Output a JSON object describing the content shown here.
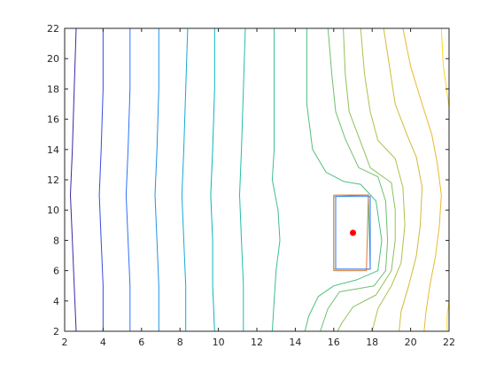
{
  "chart_data": {
    "type": "contour",
    "title": "",
    "xlabel": "",
    "ylabel": "",
    "xlim": [
      2,
      22
    ],
    "ylim": [
      2,
      22
    ],
    "grid": false,
    "xticks": [
      2,
      4,
      6,
      8,
      10,
      12,
      14,
      16,
      18,
      20,
      22
    ],
    "yticks": [
      2,
      4,
      6,
      8,
      10,
      12,
      14,
      16,
      18,
      20,
      22
    ],
    "xtick_labels": [
      "2",
      "4",
      "6",
      "8",
      "10",
      "12",
      "14",
      "16",
      "18",
      "20",
      "22"
    ],
    "ytick_labels": [
      "2",
      "4",
      "6",
      "8",
      "10",
      "12",
      "14",
      "16",
      "18",
      "20",
      "22"
    ],
    "contour_lines": [
      {
        "color": "#3e26a8",
        "points": [
          [
            2.6,
            22
          ],
          [
            2.5,
            18
          ],
          [
            2.4,
            14
          ],
          [
            2.3,
            11
          ],
          [
            2.4,
            8
          ],
          [
            2.5,
            5
          ],
          [
            2.6,
            2
          ]
        ]
      },
      {
        "color": "#3a4be3",
        "points": [
          [
            4.0,
            22
          ],
          [
            4.0,
            18
          ],
          [
            3.9,
            14
          ],
          [
            3.8,
            11
          ],
          [
            3.9,
            8
          ],
          [
            4.0,
            5
          ],
          [
            4.0,
            2
          ]
        ]
      },
      {
        "color": "#2c72f8",
        "points": [
          [
            5.4,
            22
          ],
          [
            5.4,
            18
          ],
          [
            5.3,
            14
          ],
          [
            5.2,
            11
          ],
          [
            5.3,
            8
          ],
          [
            5.4,
            5
          ],
          [
            5.4,
            2
          ]
        ]
      },
      {
        "color": "#1f93e6",
        "points": [
          [
            6.9,
            22
          ],
          [
            6.9,
            18
          ],
          [
            6.8,
            14
          ],
          [
            6.7,
            11
          ],
          [
            6.8,
            8
          ],
          [
            6.9,
            5
          ],
          [
            6.9,
            2
          ]
        ]
      },
      {
        "color": "#14a9d6",
        "points": [
          [
            8.4,
            22
          ],
          [
            8.3,
            18
          ],
          [
            8.2,
            14
          ],
          [
            8.1,
            11
          ],
          [
            8.2,
            8
          ],
          [
            8.3,
            5
          ],
          [
            8.3,
            2
          ]
        ]
      },
      {
        "color": "#08b6bd",
        "points": [
          [
            9.8,
            22
          ],
          [
            9.8,
            18
          ],
          [
            9.7,
            14
          ],
          [
            9.6,
            11
          ],
          [
            9.7,
            8
          ],
          [
            9.7,
            5
          ],
          [
            9.8,
            2
          ]
        ]
      },
      {
        "color": "#22bda8",
        "points": [
          [
            11.4,
            22
          ],
          [
            11.3,
            18
          ],
          [
            11.2,
            14
          ],
          [
            11.1,
            11
          ],
          [
            11.2,
            8
          ],
          [
            11.3,
            5
          ],
          [
            11.3,
            2
          ]
        ]
      },
      {
        "color": "#3cbf8f",
        "points": [
          [
            12.9,
            22
          ],
          [
            12.9,
            18
          ],
          [
            12.9,
            14
          ],
          [
            12.8,
            12
          ],
          [
            13.1,
            10
          ],
          [
            13.2,
            8
          ],
          [
            13.0,
            6
          ],
          [
            12.9,
            4
          ],
          [
            12.8,
            2
          ]
        ]
      },
      {
        "color": "#4ec07d",
        "points": [
          [
            14.6,
            22
          ],
          [
            14.6,
            17
          ],
          [
            14.9,
            14
          ],
          [
            15.6,
            12.5
          ],
          [
            16.5,
            11.9
          ],
          [
            17.4,
            11.7
          ],
          [
            18.2,
            10.6
          ],
          [
            18.5,
            8
          ],
          [
            18.3,
            6
          ],
          [
            17.2,
            5.4
          ],
          [
            16.0,
            5.0
          ],
          [
            15.2,
            4.3
          ],
          [
            14.7,
            3
          ],
          [
            14.5,
            2
          ]
        ]
      },
      {
        "color": "#6fbf6f",
        "points": [
          [
            15.7,
            22
          ],
          [
            15.9,
            19
          ],
          [
            16.1,
            16.5
          ],
          [
            16.6,
            14.7
          ],
          [
            17.3,
            12.8
          ],
          [
            18.3,
            12.2
          ],
          [
            18.7,
            10.6
          ],
          [
            18.8,
            8
          ],
          [
            18.7,
            6
          ],
          [
            18.1,
            5.0
          ],
          [
            16.3,
            4.6
          ],
          [
            15.7,
            3.5
          ],
          [
            15.3,
            2
          ]
        ]
      },
      {
        "color": "#8fc15a",
        "points": [
          [
            16.5,
            22
          ],
          [
            16.6,
            19
          ],
          [
            16.8,
            16.5
          ],
          [
            17.4,
            14.5
          ],
          [
            17.9,
            12.8
          ],
          [
            19.0,
            11.8
          ],
          [
            19.2,
            10
          ],
          [
            19.2,
            8
          ],
          [
            19.0,
            6
          ],
          [
            18.2,
            4.4
          ],
          [
            17.0,
            3.6
          ],
          [
            16.4,
            2.5
          ],
          [
            16.2,
            2
          ]
        ]
      },
      {
        "color": "#b2c049",
        "points": [
          [
            17.4,
            22
          ],
          [
            17.6,
            19
          ],
          [
            17.9,
            16.5
          ],
          [
            18.3,
            14.6
          ],
          [
            19.2,
            13.4
          ],
          [
            19.6,
            11.5
          ],
          [
            19.7,
            9
          ],
          [
            19.5,
            6.5
          ],
          [
            19.0,
            5
          ],
          [
            18.3,
            3.5
          ],
          [
            18.0,
            2
          ]
        ]
      },
      {
        "color": "#d1bb3a",
        "points": [
          [
            18.6,
            22
          ],
          [
            18.9,
            19.5
          ],
          [
            19.2,
            17
          ],
          [
            19.8,
            15
          ],
          [
            20.3,
            13.5
          ],
          [
            20.6,
            11.5
          ],
          [
            20.5,
            9
          ],
          [
            20.3,
            7
          ],
          [
            19.9,
            5
          ],
          [
            19.5,
            3.3
          ],
          [
            19.4,
            2
          ]
        ]
      },
      {
        "color": "#eab92d",
        "points": [
          [
            19.6,
            22
          ],
          [
            20.0,
            19.5
          ],
          [
            20.6,
            17
          ],
          [
            21.1,
            15
          ],
          [
            21.4,
            13
          ],
          [
            21.6,
            11
          ],
          [
            21.5,
            9
          ],
          [
            21.3,
            7
          ],
          [
            21.0,
            5
          ],
          [
            20.8,
            3.3
          ],
          [
            20.7,
            2
          ]
        ]
      },
      {
        "color": "#f9d91f",
        "points": [
          [
            21.6,
            22
          ],
          [
            21.7,
            19.5
          ],
          [
            22.0,
            16.8
          ]
        ]
      },
      {
        "color": "#f9d91f",
        "points": [
          [
            22.0,
            4.0
          ],
          [
            21.9,
            3
          ],
          [
            21.9,
            2
          ]
        ]
      },
      {
        "color": "#3cbf8f",
        "points": [
          [
            16.0,
            10.9
          ],
          [
            17.8,
            11.0
          ],
          [
            17.9,
            6.1
          ],
          [
            16.0,
            6.1
          ],
          [
            16.0,
            10.9
          ]
        ]
      },
      {
        "color": "#e07a32",
        "points": [
          [
            16.0,
            11.0
          ],
          [
            17.8,
            11.0
          ],
          [
            17.7,
            6.0
          ],
          [
            16.0,
            6.0
          ],
          [
            16.0,
            11.0
          ]
        ]
      },
      {
        "color": "#2c72f8",
        "points": [
          [
            16.1,
            10.9
          ],
          [
            17.9,
            10.9
          ],
          [
            17.9,
            6.1
          ],
          [
            16.1,
            6.1
          ],
          [
            16.1,
            10.9
          ]
        ]
      }
    ],
    "markers": [
      {
        "x": 17.0,
        "y": 8.5,
        "color": "#ff0000",
        "label": "point"
      }
    ]
  }
}
